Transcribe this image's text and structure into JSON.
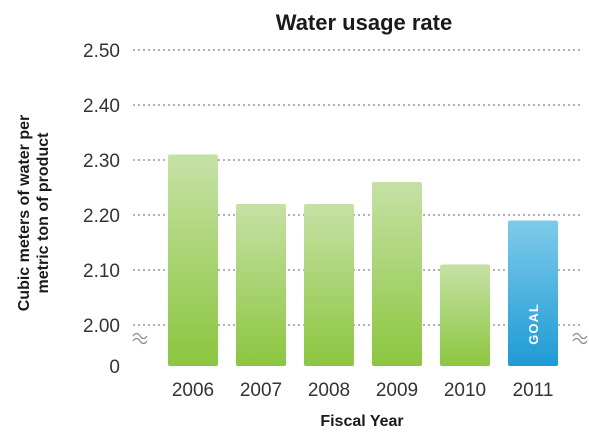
{
  "chart_data": {
    "type": "bar",
    "title": "Water usage rate",
    "xlabel": "Fiscal Year",
    "ylabel_lines": [
      "Cubic meters of water per",
      "metric ton of product"
    ],
    "categories": [
      "2006",
      "2007",
      "2008",
      "2009",
      "2010",
      "2011"
    ],
    "values": [
      2.31,
      2.22,
      2.22,
      2.26,
      2.11,
      2.19
    ],
    "y_ticks": [
      "2.50",
      "2.40",
      "2.30",
      "2.20",
      "2.10",
      "2.00",
      "0"
    ],
    "ylim": [
      2.0,
      2.5
    ],
    "axis_break": true,
    "grid": true,
    "goal_label": "GOAL",
    "goal_index": 5,
    "colors": {
      "bar_top": "#c5e1a5",
      "bar_bottom": "#8cc63f",
      "goal_top": "#7ecbea",
      "goal_bottom": "#1e9ad6",
      "grid": "#9a9a9a"
    }
  }
}
